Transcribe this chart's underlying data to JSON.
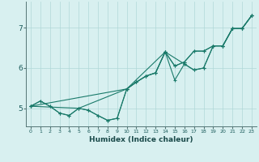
{
  "xlabel": "Humidex (Indice chaleur)",
  "bg_color": "#d8f0f0",
  "line_color": "#1a7a6a",
  "grid_color": "#b0d8d8",
  "xlim": [
    -0.5,
    23.5
  ],
  "ylim": [
    4.55,
    7.65
  ],
  "yticks": [
    5,
    6,
    7
  ],
  "xticks": [
    0,
    1,
    2,
    3,
    4,
    5,
    6,
    7,
    8,
    9,
    10,
    11,
    12,
    13,
    14,
    15,
    16,
    17,
    18,
    19,
    20,
    21,
    22,
    23
  ],
  "series": [
    {
      "x": [
        0,
        1,
        2,
        3,
        4,
        5,
        6,
        7,
        8,
        9,
        10,
        11,
        12,
        13,
        14,
        15,
        16,
        17,
        18,
        19,
        20,
        21,
        22,
        23
      ],
      "y": [
        5.05,
        5.18,
        5.05,
        4.88,
        4.82,
        5.0,
        4.95,
        4.82,
        4.7,
        4.75,
        5.48,
        5.65,
        5.8,
        5.88,
        6.4,
        5.7,
        6.1,
        5.95,
        6.0,
        6.55,
        6.55,
        6.98,
        6.98,
        7.3
      ]
    },
    {
      "x": [
        0,
        1,
        2,
        3,
        4,
        5,
        6,
        7,
        8,
        9,
        10,
        11,
        12,
        13,
        14,
        16,
        17,
        18,
        19,
        20,
        21,
        22,
        23
      ],
      "y": [
        5.05,
        5.18,
        5.05,
        4.88,
        4.82,
        5.0,
        4.95,
        4.82,
        4.7,
        4.75,
        5.48,
        5.65,
        5.8,
        5.88,
        6.4,
        6.1,
        5.95,
        6.0,
        6.55,
        6.55,
        6.98,
        6.98,
        7.3
      ]
    },
    {
      "x": [
        0,
        5,
        10,
        11,
        12,
        13,
        14,
        15,
        16,
        17,
        18,
        19,
        20,
        21,
        22,
        23
      ],
      "y": [
        5.05,
        5.0,
        5.48,
        5.65,
        5.8,
        5.88,
        6.4,
        6.05,
        6.15,
        6.42,
        6.42,
        6.55,
        6.55,
        6.98,
        6.98,
        7.3
      ]
    },
    {
      "x": [
        0,
        10,
        14,
        15,
        16,
        17,
        18,
        19,
        20,
        21,
        22,
        23
      ],
      "y": [
        5.05,
        5.48,
        6.4,
        6.05,
        6.15,
        6.42,
        6.42,
        6.55,
        6.55,
        6.98,
        6.98,
        7.3
      ]
    }
  ]
}
